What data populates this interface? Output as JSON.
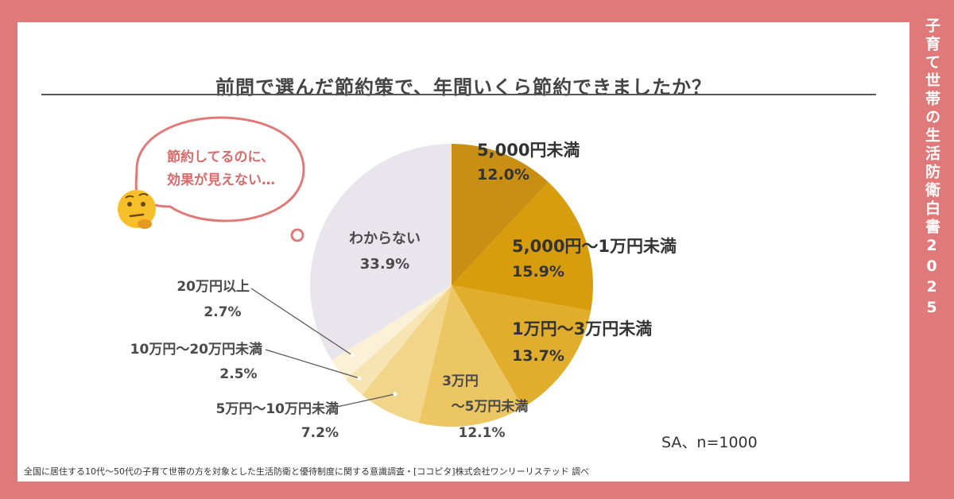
{
  "header": {
    "title": "前問で選んだ節約策で、年間いくら節約できましたか？",
    "side_label": "子育て世帯の生活防衛白書2025"
  },
  "bubble": {
    "line1": "節約してるのに、",
    "line2": "効果が見えない…",
    "emoji": "thinking-face-icon"
  },
  "chart_data": {
    "type": "pie",
    "title": "前問で選んだ節約策で、年間いくら節約できましたか？",
    "start": "12 o'clock, clockwise",
    "slices": [
      {
        "label": "5,000円未満",
        "value": 12.0,
        "value_label": "12.0%",
        "color": "#c98f12"
      },
      {
        "label": "5,000円〜1万円未満",
        "value": 15.9,
        "value_label": "15.9%",
        "color": "#d89d0c"
      },
      {
        "label": "1万円〜3万円未満",
        "value": 13.7,
        "value_label": "13.7%",
        "color": "#e1ad2c"
      },
      {
        "label": "3万円〜5万円未満",
        "label_line1": "3万円",
        "label_line2": "〜5万円未満",
        "value": 12.1,
        "value_label": "12.1%",
        "color": "#ebc663"
      },
      {
        "label": "5万円〜10万円未満",
        "value": 7.2,
        "value_label": "7.2%",
        "color": "#f1d68a"
      },
      {
        "label": "10万円〜20万円未満",
        "value": 2.5,
        "value_label": "2.5%",
        "color": "#f6e5b3"
      },
      {
        "label": "20万円以上",
        "value": 2.7,
        "value_label": "2.7%",
        "color": "#fbf1d6"
      },
      {
        "label": "わからない",
        "value": 33.9,
        "value_label": "33.9%",
        "color": "#e8e6ec"
      }
    ]
  },
  "sample_note": "SA、n=1000",
  "footnote": "全国に居住する10代〜50代の子育て世帯の方を対象とした生活防衛と優待制度に関する意識調査・[ココピタ]株式会社ワンリーリステッド 調べ"
}
